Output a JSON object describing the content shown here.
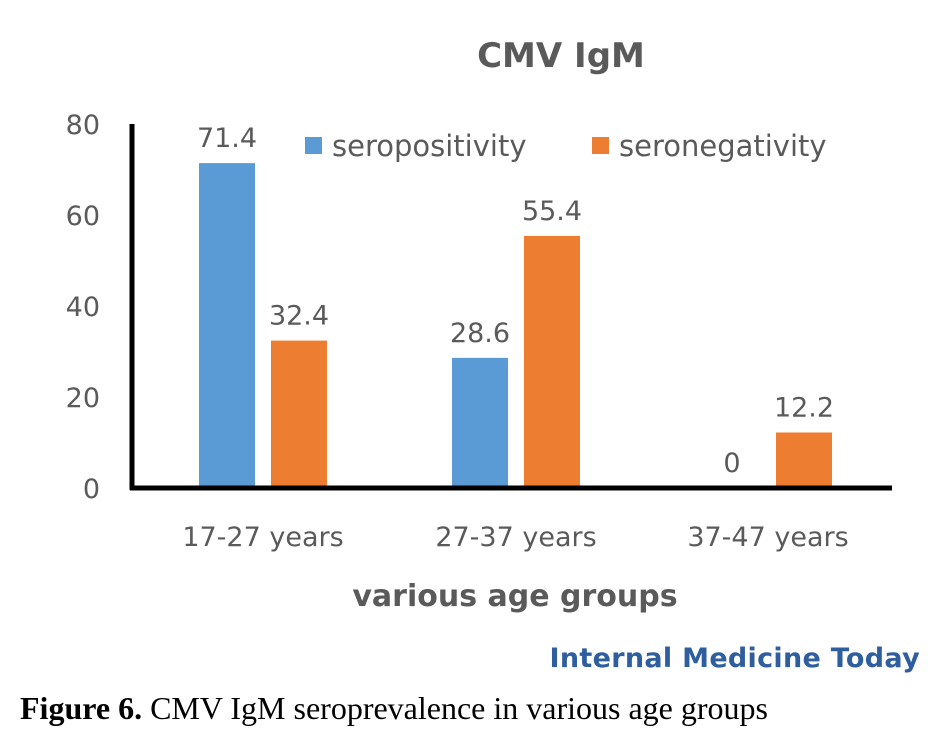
{
  "chart_data": {
    "type": "bar",
    "title": "CMV IgM",
    "categories": [
      "17-27 years",
      "27-37 years",
      "37-47 years"
    ],
    "series": [
      {
        "name": "seropositivity",
        "values": [
          71.4,
          28.6,
          0
        ],
        "labels": [
          "71.4",
          "28.6",
          "0"
        ],
        "color": "#5b9bd5"
      },
      {
        "name": "seronegativity",
        "values": [
          32.4,
          55.4,
          12.2
        ],
        "labels": [
          "32.4",
          "55.4",
          "12.2"
        ],
        "color": "#ed7d31"
      }
    ],
    "xlabel": "various age groups",
    "ylabel": "",
    "ylim": [
      0,
      80
    ],
    "yticks": [
      "0",
      "20",
      "40",
      "60",
      "80"
    ],
    "legend_position": "top",
    "grid": false
  },
  "watermark": "Internal Medicine Today",
  "caption": {
    "label": "Figure 6.",
    "text": " CMV IgM seroprevalence in various age groups"
  }
}
